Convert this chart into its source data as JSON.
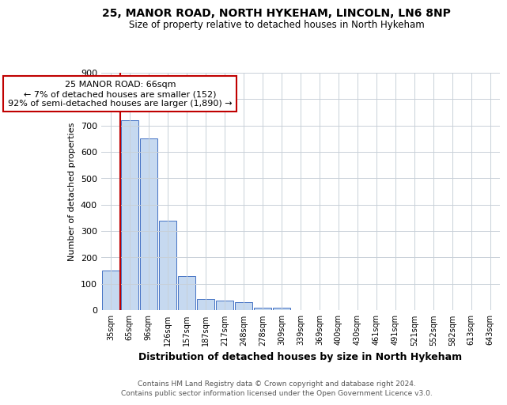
{
  "title1": "25, MANOR ROAD, NORTH HYKEHAM, LINCOLN, LN6 8NP",
  "title2": "Size of property relative to detached houses in North Hykeham",
  "xlabel": "Distribution of detached houses by size in North Hykeham",
  "ylabel": "Number of detached properties",
  "footnote1": "Contains HM Land Registry data © Crown copyright and database right 2024.",
  "footnote2": "Contains public sector information licensed under the Open Government Licence v3.0.",
  "categories": [
    "35sqm",
    "65sqm",
    "96sqm",
    "126sqm",
    "157sqm",
    "187sqm",
    "217sqm",
    "248sqm",
    "278sqm",
    "309sqm",
    "339sqm",
    "369sqm",
    "400sqm",
    "430sqm",
    "461sqm",
    "491sqm",
    "521sqm",
    "552sqm",
    "582sqm",
    "613sqm",
    "643sqm"
  ],
  "values": [
    150,
    720,
    650,
    340,
    130,
    42,
    35,
    30,
    10,
    8,
    0,
    0,
    0,
    0,
    0,
    0,
    0,
    0,
    0,
    0,
    0
  ],
  "bar_color": "#c6d9f0",
  "bar_edge_color": "#4472c4",
  "annotation_line1": "25 MANOR ROAD: 66sqm",
  "annotation_line2": "← 7% of detached houses are smaller (152)",
  "annotation_line3": "92% of semi-detached houses are larger (1,890) →",
  "vline_color": "#c00000",
  "vline_x": 0.5,
  "annotation_box_color": "#c00000",
  "bg_color": "#ffffff",
  "grid_color": "#c8d0d8",
  "ylim": [
    0,
    900
  ],
  "yticks": [
    0,
    100,
    200,
    300,
    400,
    500,
    600,
    700,
    800,
    900
  ]
}
